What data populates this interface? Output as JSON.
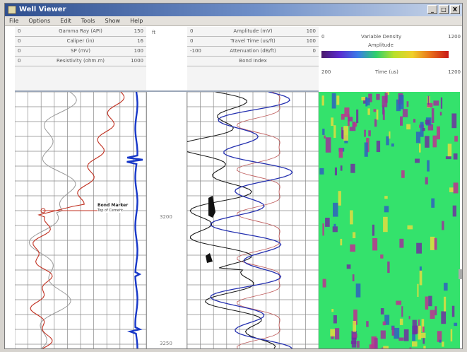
{
  "window": {
    "title": "Well Viewer",
    "menu": [
      "File",
      "Options",
      "Edit",
      "Tools",
      "Show",
      "Help"
    ],
    "controls": [
      "_",
      "□",
      "X"
    ]
  },
  "left_header": {
    "rows": [
      {
        "left": "0",
        "center": "Gamma Ray (API)",
        "right": "150"
      },
      {
        "left": "0",
        "center": "Caliper (in)",
        "right": "16"
      },
      {
        "left": "0",
        "center": "SP (mV)",
        "right": "100"
      },
      {
        "left": "0",
        "center": "Resistivity (ohm.m)",
        "right": "1000"
      }
    ]
  },
  "depth_header": {
    "unit": "ft"
  },
  "mid_header": {
    "rows": [
      {
        "left": "0",
        "center": "Amplitude (mV)",
        "right": "100"
      },
      {
        "left": "0",
        "center": "Travel Time (us/ft)",
        "right": "100"
      },
      {
        "left": "-100",
        "center": "Attenuation (dB/ft)",
        "right": "0"
      },
      {
        "left": "",
        "center": "Bond Index",
        "right": ""
      }
    ]
  },
  "heatmap_header": {
    "top_left": "0",
    "top_center": "Variable Density",
    "top_right": "1200",
    "colorbar_label": "Amplitude",
    "bottom_left": "200",
    "bottom_center": "Time (us)",
    "bottom_right": "1200"
  },
  "annotation": {
    "text": "Bond Marker",
    "subtext": "Top of Cement"
  },
  "depth_labels": [
    "3200",
    "3250"
  ],
  "colors": {
    "gamma": "#c03020",
    "caliper": "#9a9a9a",
    "sp": "#1838c8",
    "amp_dark": "#1a1a1a",
    "amp_blue": "#2430b0",
    "amp_red": "#c06060",
    "heat_green": "#34e26c",
    "heat_magenta": "#a0309a"
  }
}
